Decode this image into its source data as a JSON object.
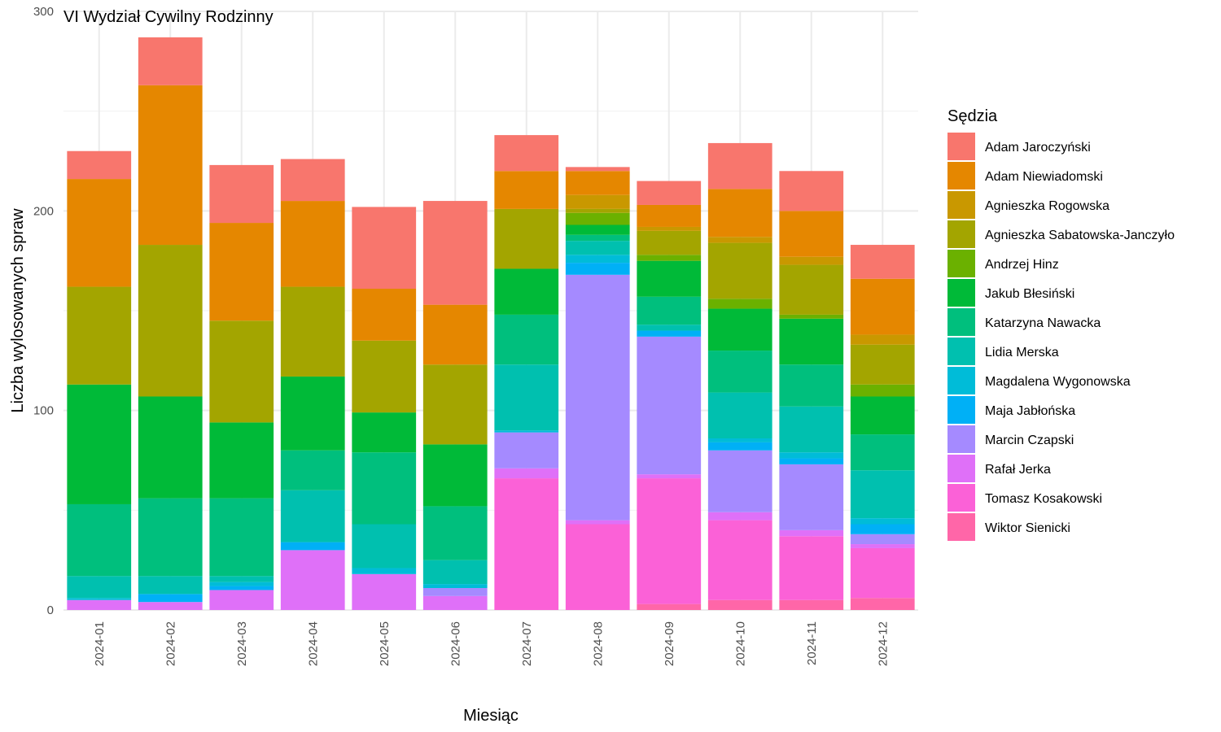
{
  "chart_data": {
    "type": "bar",
    "stacked": true,
    "title": "VI Wydział Cywilny Rodzinny",
    "xlabel": "Miesiąc",
    "ylabel": "Liczba wylosowanych spraw",
    "ylim": [
      0,
      300
    ],
    "yticks": [
      0,
      100,
      200,
      300
    ],
    "grid": true,
    "legend_title": "Sędzia",
    "legend_position": "right",
    "categories": [
      "2024-01",
      "2024-02",
      "2024-03",
      "2024-04",
      "2024-05",
      "2024-06",
      "2024-07",
      "2024-08",
      "2024-09",
      "2024-10",
      "2024-11",
      "2024-12"
    ],
    "series": [
      {
        "name": "Adam Jaroczyński",
        "color": "#F8766D",
        "values": [
          14,
          24,
          29,
          21,
          41,
          52,
          18,
          2,
          12,
          23,
          20,
          17
        ]
      },
      {
        "name": "Adam Niewiadomski",
        "color": "#E58700",
        "values": [
          54,
          80,
          49,
          43,
          26,
          30,
          19,
          12,
          11,
          24,
          23,
          28
        ]
      },
      {
        "name": "Agnieszka Rogowska",
        "color": "#C99800",
        "values": [
          0,
          0,
          0,
          0,
          0,
          0,
          0,
          7,
          2,
          3,
          4,
          5
        ]
      },
      {
        "name": "Agnieszka Sabatowska-Janczyło",
        "color": "#A3A500",
        "values": [
          49,
          76,
          51,
          45,
          36,
          40,
          30,
          2,
          12,
          28,
          25,
          20
        ]
      },
      {
        "name": "Andrzej Hinz",
        "color": "#6BB100",
        "values": [
          0,
          0,
          0,
          0,
          0,
          0,
          0,
          6,
          3,
          5,
          2,
          6
        ]
      },
      {
        "name": "Jakub Błesiński",
        "color": "#00BA38",
        "values": [
          60,
          51,
          38,
          37,
          20,
          31,
          23,
          5,
          18,
          21,
          23,
          19
        ]
      },
      {
        "name": "Katarzyna Nawacka",
        "color": "#00BF7D",
        "values": [
          36,
          39,
          39,
          20,
          36,
          27,
          25,
          3,
          14,
          21,
          21,
          18
        ]
      },
      {
        "name": "Lidia Merska",
        "color": "#00C0AF",
        "values": [
          11,
          9,
          3,
          26,
          22,
          12,
          33,
          7,
          3,
          23,
          23,
          24
        ]
      },
      {
        "name": "Magdalena Wygonowska",
        "color": "#00BCD8",
        "values": [
          1,
          0,
          2,
          0,
          3,
          2,
          1,
          4,
          0,
          2,
          3,
          3
        ]
      },
      {
        "name": "Maja Jabłońska",
        "color": "#00B0F6",
        "values": [
          0,
          4,
          2,
          4,
          0,
          0,
          0,
          6,
          3,
          4,
          3,
          5
        ]
      },
      {
        "name": "Marcin Czapski",
        "color": "#A58AFF",
        "values": [
          0,
          0,
          0,
          0,
          0,
          4,
          18,
          123,
          69,
          31,
          33,
          5
        ]
      },
      {
        "name": "Rafał Jerka",
        "color": "#DF70F8",
        "values": [
          5,
          4,
          10,
          30,
          18,
          7,
          5,
          2,
          2,
          4,
          3,
          2
        ]
      },
      {
        "name": "Tomasz Kosakowski",
        "color": "#FB61D7",
        "values": [
          0,
          0,
          0,
          0,
          0,
          0,
          66,
          43,
          63,
          40,
          32,
          25
        ]
      },
      {
        "name": "Wiktor Sienicki",
        "color": "#FF66A8",
        "values": [
          0,
          0,
          0,
          0,
          0,
          0,
          0,
          0,
          3,
          5,
          5,
          6
        ]
      }
    ]
  }
}
